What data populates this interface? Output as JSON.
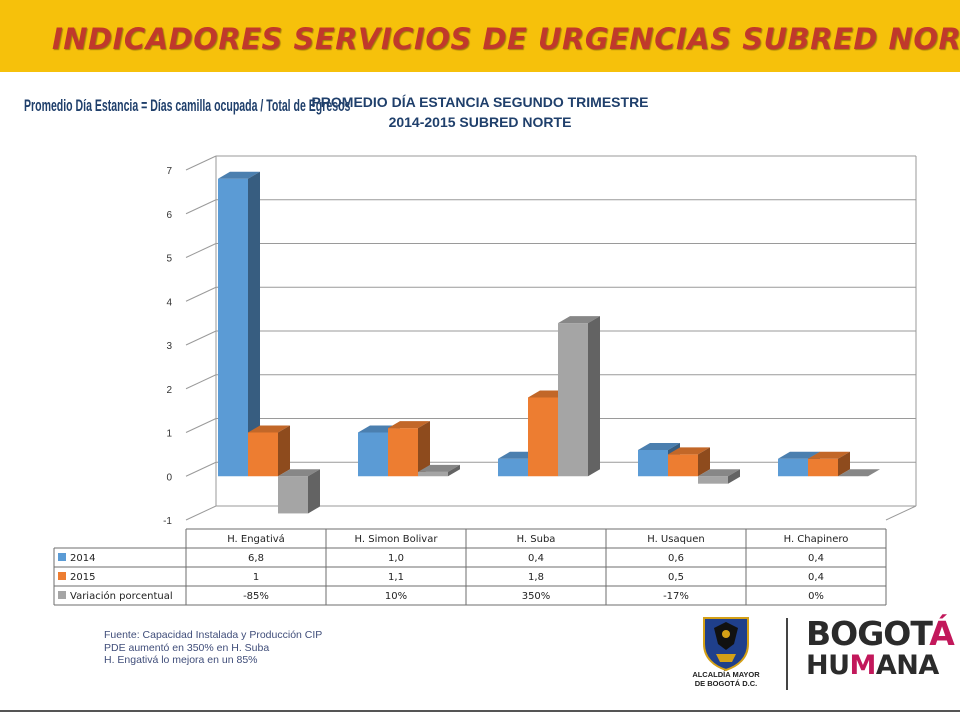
{
  "header": {
    "title": "INDICADORES SERVICIOS DE URGENCIAS SUBRED NORTE"
  },
  "formula_text": "Promedio Día Estancia = Días camilla ocupada / Total de Egresos",
  "chart_data": {
    "type": "bar",
    "title_line1": "PROMEDIO DÍA ESTANCIA SEGUNDO TRIMESTRE",
    "title_line2": "2014-2015 SUBRED NORTE",
    "categories": [
      "H. Engativá",
      "H. Simon Bolivar",
      "H. Suba",
      "H. Usaquen",
      "H. Chapinero"
    ],
    "series": [
      {
        "name": "2014",
        "values": [
          6.8,
          1.0,
          0.4,
          0.6,
          0.4
        ],
        "labels": [
          "6,8",
          "1,0",
          "0,4",
          "0,6",
          "0,4"
        ],
        "color": "#5b9bd5"
      },
      {
        "name": "2015",
        "values": [
          1,
          1.1,
          1.8,
          0.5,
          0.4
        ],
        "labels": [
          "1",
          "1,1",
          "1,8",
          "0,5",
          "0,4"
        ],
        "color": "#ed7d31"
      },
      {
        "name": "Variación porcentual",
        "values": [
          -0.85,
          0.1,
          3.5,
          -0.17,
          0
        ],
        "labels": [
          "-85%",
          "10%",
          "350%",
          "-17%",
          "0%"
        ],
        "color": "#a5a5a5"
      }
    ],
    "ylim": [
      -1,
      7
    ],
    "yticks": [
      "-1",
      "0",
      "1",
      "2",
      "3",
      "4",
      "5",
      "6",
      "7"
    ],
    "grid": true,
    "legend": "data-table"
  },
  "footnote": {
    "line1": "Fuente: Capacidad Instalada y Producción  CIP",
    "line2": "PDE  aumentó en 350% en H. Suba",
    "line3": "H. Engativá lo mejora en un 85%"
  },
  "logos": {
    "alcaldia_line1": "ALCALDÍA MAYOR",
    "alcaldia_line2": "DE BOGOTÁ D.C.",
    "bogota_line1_a": "BOGOT",
    "bogota_line1_b": "Á",
    "bogota_line2_a": "HU",
    "bogota_line2_b": "M",
    "bogota_line2_c": "ANA"
  },
  "colors": {
    "banner": "#f6c10b",
    "banner_text": "#c0392b",
    "title_text": "#1f3f6b"
  }
}
